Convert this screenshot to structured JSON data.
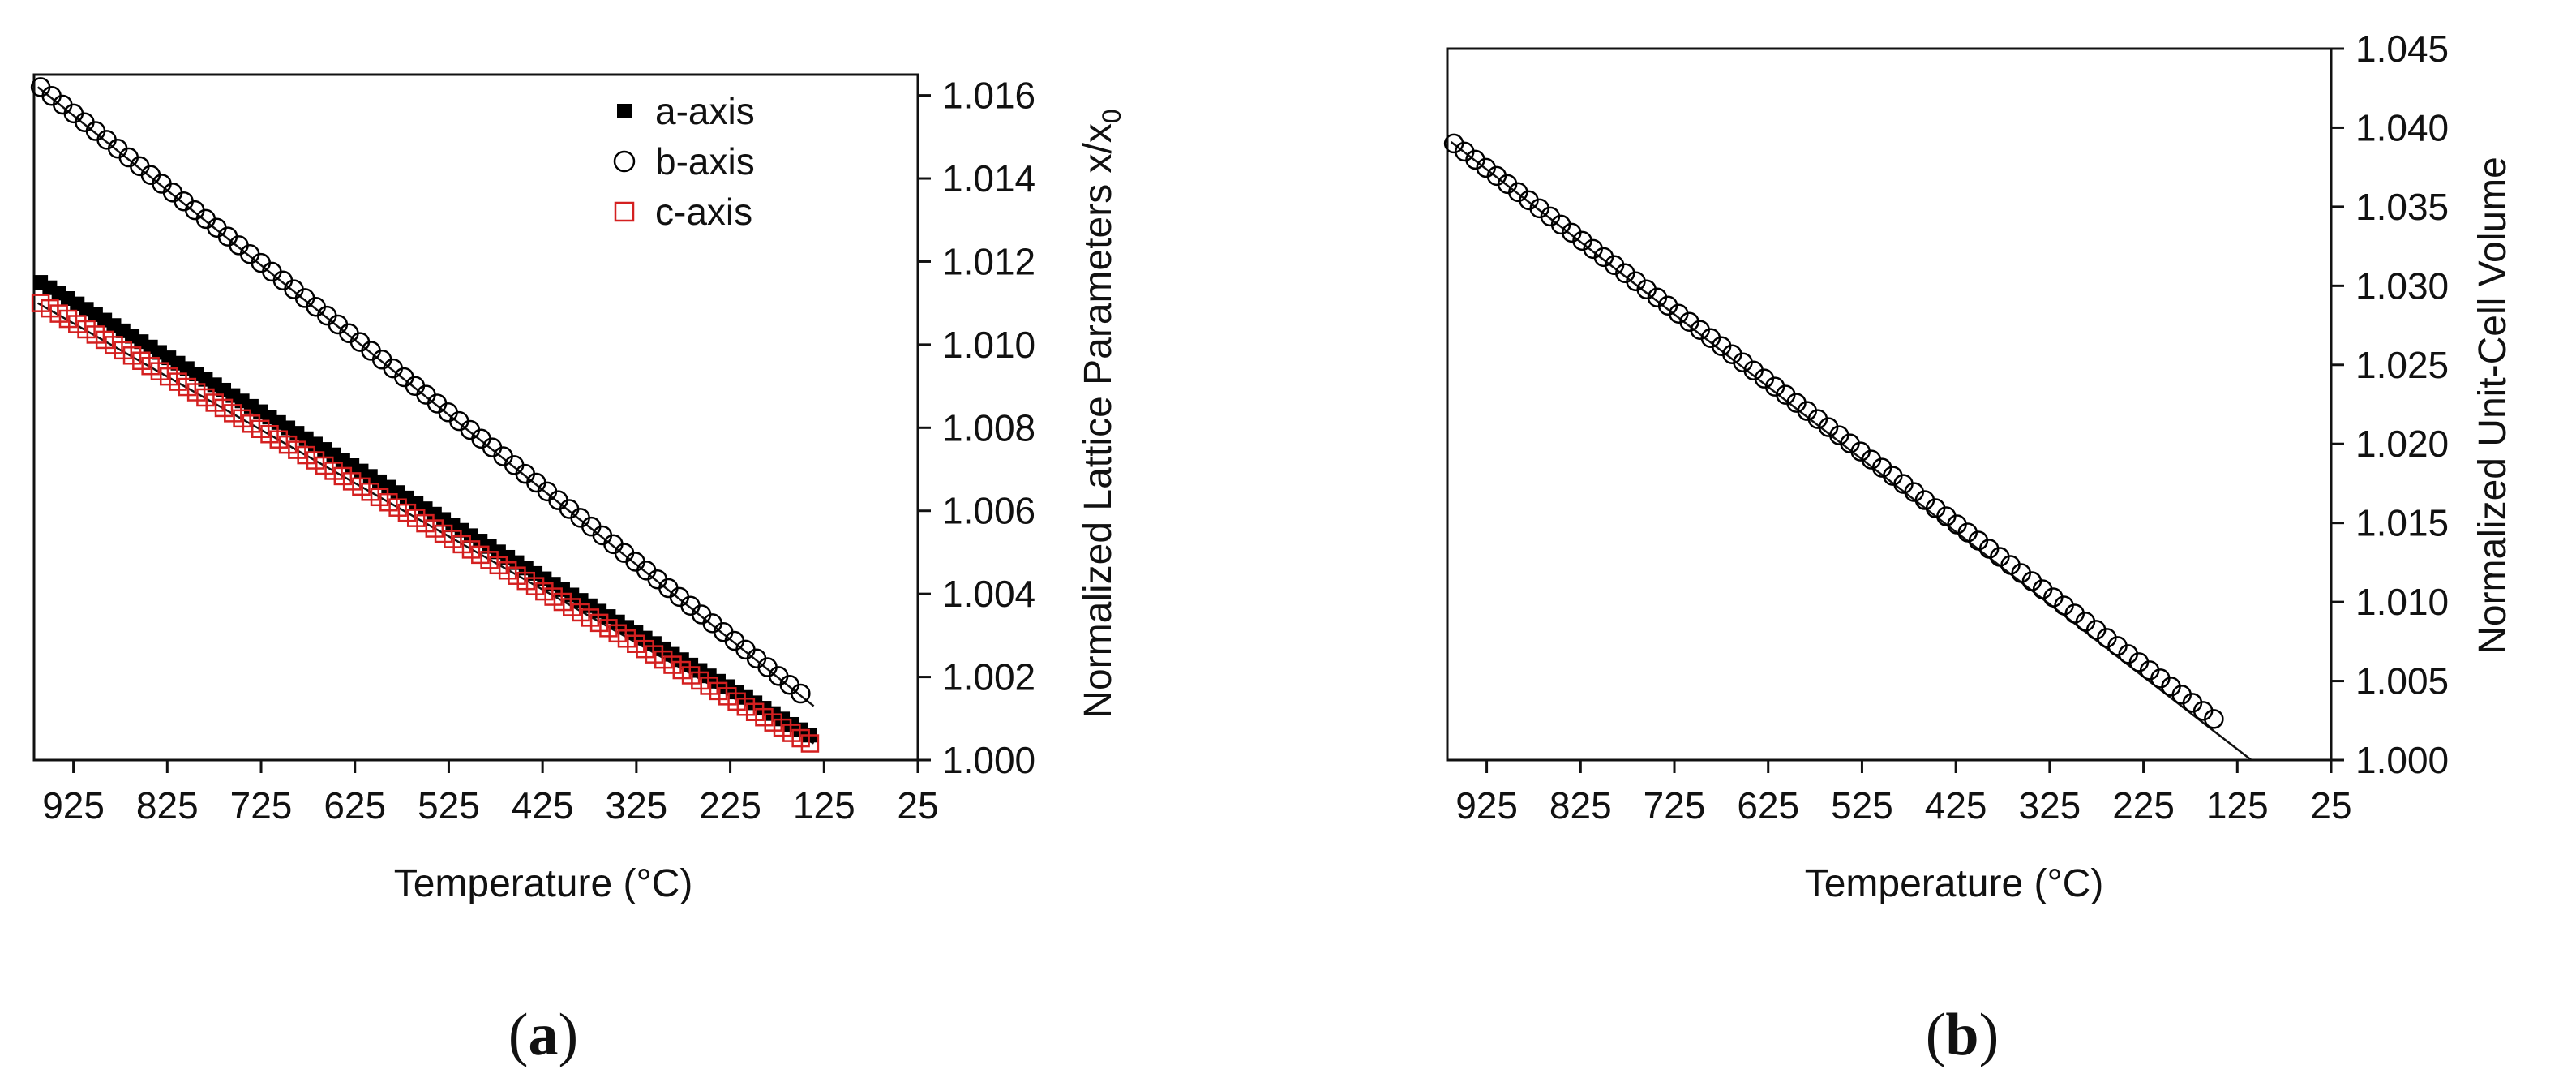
{
  "chart_data": [
    {
      "type": "scatter",
      "panel_label": "a",
      "xlabel": "Temperature (°C)",
      "ylabel": "Normalized Lattice Parameters x/x",
      "ylabel_subscript": "0",
      "xlim": [
        967,
        25
      ],
      "ylim": [
        1.0,
        1.0165
      ],
      "y_axis_side": "right",
      "x_ticks": [
        925,
        825,
        725,
        625,
        525,
        425,
        325,
        225,
        125,
        25
      ],
      "x_tick_labels": [
        "925",
        "825",
        "725",
        "625",
        "525",
        "425",
        "325",
        "225",
        "125",
        "25"
      ],
      "y_ticks": [
        1.0,
        1.002,
        1.004,
        1.006,
        1.008,
        1.01,
        1.012,
        1.014,
        1.016
      ],
      "y_tick_labels": [
        "1.000",
        "1.002",
        "1.004",
        "1.006",
        "1.008",
        "1.010",
        "1.012",
        "1.014",
        "1.016"
      ],
      "grid": false,
      "legend_position": "top-right",
      "series": [
        {
          "name": "a-axis",
          "marker": "filled-square",
          "color": "#000000",
          "x_start": 960,
          "x_end": 140,
          "count": 85,
          "y_start": 1.0115,
          "y_end": 1.0006
        },
        {
          "name": "b-axis",
          "marker": "open-circle",
          "color": "#000000",
          "x_start": 960,
          "x_end": 150,
          "count": 70,
          "y_start": 1.0162,
          "y_end": 1.0016
        },
        {
          "name": "c-axis",
          "marker": "open-square",
          "color": "#d42020",
          "x_start": 960,
          "x_end": 140,
          "count": 85,
          "y_start": 1.011,
          "y_end": 1.0004
        }
      ],
      "fit_lines": [
        {
          "x": [
            963,
            136
          ],
          "y": [
            1.0162,
            1.0013
          ]
        },
        {
          "x": [
            963,
            136
          ],
          "y": [
            1.0115,
            1.0006
          ]
        },
        {
          "x": [
            963,
            136
          ],
          "y": [
            1.011,
            1.0004
          ]
        }
      ]
    },
    {
      "type": "scatter",
      "panel_label": "b",
      "xlabel": "Temperature (°C)",
      "ylabel": "Normalized Unit-Cell Volume",
      "xlim": [
        967,
        25
      ],
      "ylim": [
        1.0,
        1.045
      ],
      "y_axis_side": "right",
      "x_ticks": [
        925,
        825,
        725,
        625,
        525,
        425,
        325,
        225,
        125,
        25
      ],
      "x_tick_labels": [
        "925",
        "825",
        "725",
        "625",
        "525",
        "425",
        "325",
        "225",
        "125",
        "25"
      ],
      "y_ticks": [
        1.0,
        1.005,
        1.01,
        1.015,
        1.02,
        1.025,
        1.03,
        1.035,
        1.04,
        1.045
      ],
      "y_tick_labels": [
        "1.000",
        "1.005",
        "1.010",
        "1.015",
        "1.020",
        "1.025",
        "1.030",
        "1.035",
        "1.040",
        "1.045"
      ],
      "grid": false,
      "series": [
        {
          "name": "",
          "marker": "open-circle",
          "color": "#000000",
          "x_start": 960,
          "x_end": 150,
          "count": 72,
          "y_start": 1.039,
          "y_end": 1.0026
        }
      ],
      "fit_lines": [
        {
          "x": [
            963,
            110
          ],
          "y": [
            1.0391,
            1.0
          ]
        }
      ]
    }
  ]
}
